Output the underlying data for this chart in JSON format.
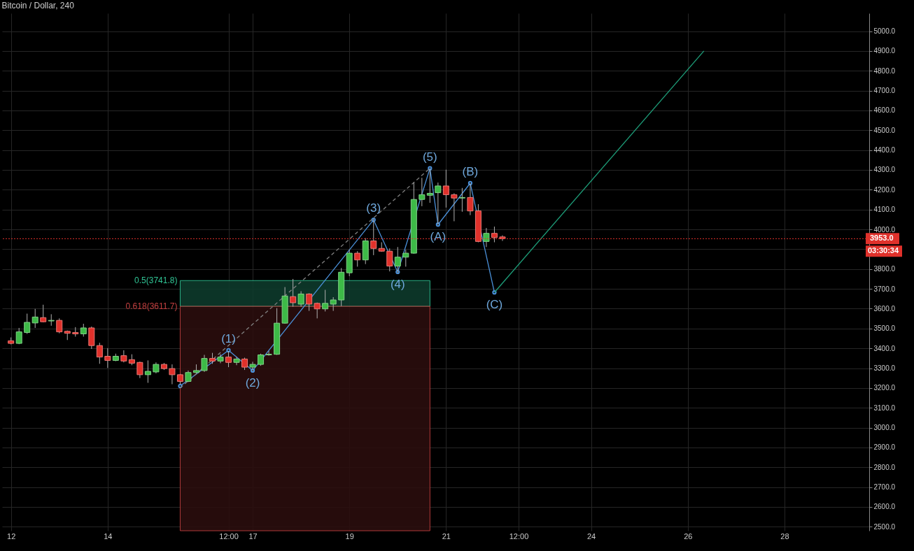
{
  "chart_data": {
    "type": "candlestick",
    "title": "Bitcoin / Dollar, 240",
    "x": [
      "--12-12T00:00",
      "--12-12T04:00",
      "--12-12T08:00",
      "--12-12T12:00",
      "--12-12T16:00",
      "--12-12T20:00",
      "--12-13T00:00",
      "--12-13T04:00",
      "--12-13T08:00",
      "--12-13T12:00",
      "--12-13T16:00",
      "--12-13T20:00",
      "--12-14T00:00",
      "--12-14T04:00",
      "--12-14T08:00",
      "--12-14T12:00",
      "--12-14T16:00",
      "--12-14T20:00",
      "--12-15T00:00",
      "--12-15T04:00",
      "--12-15T08:00",
      "--12-15T12:00",
      "--12-15T16:00",
      "--12-15T20:00",
      "--12-16T00:00",
      "--12-16T04:00",
      "--12-16T08:00",
      "--12-16T12:00",
      "--12-16T16:00",
      "--12-16T20:00",
      "--12-17T00:00",
      "--12-17T04:00",
      "--12-17T08:00",
      "--12-17T12:00",
      "--12-17T16:00",
      "--12-17T20:00",
      "--12-18T00:00",
      "--12-18T04:00",
      "--12-18T08:00",
      "--12-18T12:00",
      "--12-18T16:00",
      "--12-18T20:00",
      "--12-19T00:00",
      "--12-19T04:00",
      "--12-19T08:00",
      "--12-19T12:00",
      "--12-19T16:00",
      "--12-19T20:00",
      "--12-20T00:00",
      "--12-20T04:00",
      "--12-20T08:00",
      "--12-20T12:00",
      "--12-20T16:00",
      "--12-20T20:00",
      "--12-21T00:00",
      "--12-21T04:00",
      "--12-21T08:00",
      "--12-21T12:00",
      "--12-21T16:00",
      "--12-21T20:00",
      "--12-22T00:00",
      "--12-22T04:00"
    ],
    "ohlc": [
      [
        3438,
        3455,
        3420,
        3425
      ],
      [
        3425,
        3503,
        3421,
        3483
      ],
      [
        3480,
        3575,
        3473,
        3531
      ],
      [
        3528,
        3599,
        3503,
        3558
      ],
      [
        3555,
        3620,
        3531,
        3534
      ],
      [
        3538,
        3572,
        3514,
        3541
      ],
      [
        3541,
        3551,
        3476,
        3483
      ],
      [
        3486,
        3490,
        3442,
        3476
      ],
      [
        3480,
        3507,
        3459,
        3473
      ],
      [
        3473,
        3524,
        3459,
        3503
      ],
      [
        3503,
        3510,
        3397,
        3414
      ],
      [
        3414,
        3428,
        3322,
        3356
      ],
      [
        3360,
        3401,
        3301,
        3339
      ],
      [
        3339,
        3373,
        3335,
        3360
      ],
      [
        3363,
        3390,
        3329,
        3336
      ],
      [
        3343,
        3370,
        3315,
        3325
      ],
      [
        3329,
        3333,
        3250,
        3267
      ],
      [
        3267,
        3339,
        3226,
        3284
      ],
      [
        3281,
        3329,
        3274,
        3319
      ],
      [
        3319,
        3326,
        3291,
        3298
      ],
      [
        3298,
        3319,
        3219,
        3267
      ],
      [
        3267,
        3271,
        3219,
        3233
      ],
      [
        3233,
        3288,
        3230,
        3278
      ],
      [
        3278,
        3319,
        3274,
        3288
      ],
      [
        3288,
        3367,
        3281,
        3349
      ],
      [
        3349,
        3377,
        3322,
        3336
      ],
      [
        3336,
        3370,
        3325,
        3356
      ],
      [
        3356,
        3387,
        3305,
        3329
      ],
      [
        3329,
        3356,
        3315,
        3346
      ],
      [
        3346,
        3353,
        3291,
        3305
      ],
      [
        3305,
        3332,
        3284,
        3319
      ],
      [
        3319,
        3373,
        3312,
        3367
      ],
      [
        3367,
        3387,
        3363,
        3370
      ],
      [
        3370,
        3603,
        3367,
        3527
      ],
      [
        3527,
        3709,
        3524,
        3664
      ],
      [
        3661,
        3750,
        3610,
        3630
      ],
      [
        3623,
        3688,
        3610,
        3674
      ],
      [
        3674,
        3678,
        3589,
        3623
      ],
      [
        3627,
        3631,
        3551,
        3599
      ],
      [
        3599,
        3695,
        3586,
        3627
      ],
      [
        3623,
        3658,
        3589,
        3644
      ],
      [
        3644,
        3805,
        3613,
        3784
      ],
      [
        3781,
        3897,
        3764,
        3880
      ],
      [
        3880,
        3890,
        3812,
        3846
      ],
      [
        3846,
        3956,
        3825,
        3942
      ],
      [
        3942,
        4055,
        3870,
        3904
      ],
      [
        3904,
        3935,
        3887,
        3890
      ],
      [
        3890,
        3904,
        3788,
        3815
      ],
      [
        3815,
        3911,
        3781,
        3860
      ],
      [
        3860,
        3897,
        3812,
        3880
      ],
      [
        3880,
        4236,
        3877,
        4151
      ],
      [
        4151,
        4260,
        4117,
        4175
      ],
      [
        4172,
        4308,
        4134,
        4182
      ],
      [
        4185,
        4236,
        4024,
        4219
      ],
      [
        4219,
        4301,
        4110,
        4175
      ],
      [
        4175,
        4182,
        4041,
        4158
      ],
      [
        4158,
        4209,
        4089,
        4161
      ],
      [
        4161,
        4233,
        4072,
        4093
      ],
      [
        4093,
        4127,
        3935,
        3939
      ],
      [
        3939,
        4007,
        3911,
        3980
      ],
      [
        3980,
        4014,
        3935,
        3959
      ],
      [
        3962,
        3970,
        3942,
        3953
      ]
    ],
    "colors": [
      "#e0312b",
      "#3dba47",
      "#3dba47",
      "#3dba47",
      "#e0312b",
      "#3dba47",
      "#e0312b",
      "#e0312b",
      "#e0312b",
      "#3dba47",
      "#e0312b",
      "#e0312b",
      "#e0312b",
      "#3dba47",
      "#e0312b",
      "#e0312b",
      "#e0312b",
      "#3dba47",
      "#3dba47",
      "#e0312b",
      "#e0312b",
      "#e0312b",
      "#3dba47",
      "#3dba47",
      "#3dba47",
      "#e0312b",
      "#3dba47",
      "#e0312b",
      "#3dba47",
      "#e0312b",
      "#3dba47",
      "#3dba47",
      "#3dba47",
      "#3dba47",
      "#3dba47",
      "#e0312b",
      "#3dba47",
      "#e0312b",
      "#e0312b",
      "#3dba47",
      "#3dba47",
      "#3dba47",
      "#3dba47",
      "#e0312b",
      "#3dba47",
      "#e0312b",
      "#e0312b",
      "#e0312b",
      "#3dba47",
      "#3dba47",
      "#3dba47",
      "#3dba47",
      "#3dba47",
      "#3dba47",
      "#e0312b",
      "#e0312b",
      "#3dba47",
      "#e0312b",
      "#e0312b",
      "#3dba47",
      "#e0312b",
      "#e0312b"
    ],
    "series": [
      {
        "type": "line",
        "color": "#4a90d9",
        "marker": "circle",
        "x": [
          "--12-15T12:00",
          "--12-16T12:00",
          "--12-17T00:00",
          "--12-19T12:00",
          "--12-20T00:00",
          "--12-20T16:00",
          "--12-20T20:00",
          "--12-21T12:00",
          "--12-22T00:00"
        ],
        "values": [
          3210,
          3390,
          3288,
          4048,
          3785,
          4308,
          4024,
          4233,
          3682
        ]
      },
      {
        "type": "line",
        "color": "#1e9f7a",
        "x": [
          "--12-22T00:00",
          "--12-26T08:00"
        ],
        "values": [
          3682,
          4900
        ]
      },
      {
        "type": "line",
        "color": "#808080",
        "line_style": "dashed",
        "x": [
          "--12-15T12:00",
          "--12-20T16:00"
        ],
        "values": [
          3200,
          4308
        ]
      }
    ],
    "bands": [
      {
        "axis": "y",
        "from": 3611.7,
        "to": 3741.8,
        "label": "0.5(3741.8)",
        "color": "#0e3a2c"
      },
      {
        "axis": "y",
        "from": 2480,
        "to": 3611.7,
        "label": "0.618(3611.7)",
        "color": "#2b0e0e"
      }
    ],
    "ref_lines": [
      {
        "axis": "y",
        "value": 3953,
        "label": "3953.0",
        "color": "#e0312b",
        "line_style": "dotted"
      }
    ],
    "annotations": [
      {
        "text": "(1)",
        "x": "--12-16T12:00",
        "y": 3390
      },
      {
        "text": "(2)",
        "x": "--12-17T00:00",
        "y": 3288
      },
      {
        "text": "(3)",
        "x": "--12-19T12:00",
        "y": 4048
      },
      {
        "text": "(4)",
        "x": "--12-20T00:00",
        "y": 3785
      },
      {
        "text": "(5)",
        "x": "--12-20T16:00",
        "y": 4308
      },
      {
        "text": "(A)",
        "x": "--12-20T20:00",
        "y": 4024
      },
      {
        "text": "(B)",
        "x": "--12-21T12:00",
        "y": 4233
      },
      {
        "text": "(C)",
        "x": "--12-22T00:00",
        "y": 3682
      },
      "03:30:34"
    ],
    "xlim": [
      "--12-11T21:20",
      "--12-29T16:20"
    ],
    "xticks": [
      {
        "value": "--12-12",
        "label": "12"
      },
      {
        "value": "--12-14",
        "label": "14"
      },
      {
        "value": "--12-16T12:00",
        "label": "12:00"
      },
      {
        "value": "--12-17",
        "label": "17"
      },
      {
        "value": "--12-19",
        "label": "19"
      },
      {
        "value": "--12-21",
        "label": "21"
      },
      {
        "value": "--12-22T12:00",
        "label": "12:00"
      },
      {
        "value": "--12-24",
        "label": "24"
      },
      {
        "value": "--12-26",
        "label": "26"
      },
      {
        "value": "--12-28",
        "label": "28"
      }
    ],
    "ylim": [
      2480,
      5090
    ],
    "yticks": [
      {
        "value": 2500,
        "label": "2500.0"
      },
      {
        "value": 2600,
        "label": "2600.0"
      },
      {
        "value": 2700,
        "label": "2700.0"
      },
      {
        "value": 2800,
        "label": "2800.0"
      },
      {
        "value": 2900,
        "label": "2900.0"
      },
      {
        "value": 3000,
        "label": "3000.0"
      },
      {
        "value": 3100,
        "label": "3100.0"
      },
      {
        "value": 3200,
        "label": "3200.0"
      },
      {
        "value": 3300,
        "label": "3300.0"
      },
      {
        "value": 3400,
        "label": "3400.0"
      },
      {
        "value": 3500,
        "label": "3500.0"
      },
      {
        "value": 3600,
        "label": "3600.0"
      },
      {
        "value": 3700,
        "label": "3700.0"
      },
      {
        "value": 3800,
        "label": "3800.0"
      },
      {
        "value": 3900,
        "label": null
      },
      {
        "value": 4000,
        "label": "4000.0"
      },
      {
        "value": 4100,
        "label": "4100.0"
      },
      {
        "value": 4200,
        "label": "4200.0"
      },
      {
        "value": 4300,
        "label": "4300.0"
      },
      {
        "value": 4400,
        "label": "4400.0"
      },
      {
        "value": 4500,
        "label": "4500.0"
      },
      {
        "value": 4600,
        "label": "4600.0"
      },
      {
        "value": 4700,
        "label": "4700.0"
      },
      {
        "value": 4800,
        "label": "4800.0"
      },
      {
        "value": 4900,
        "label": "4900.0"
      },
      {
        "value": 5000,
        "label": "5000.0"
      }
    ],
    "grid": true
  }
}
